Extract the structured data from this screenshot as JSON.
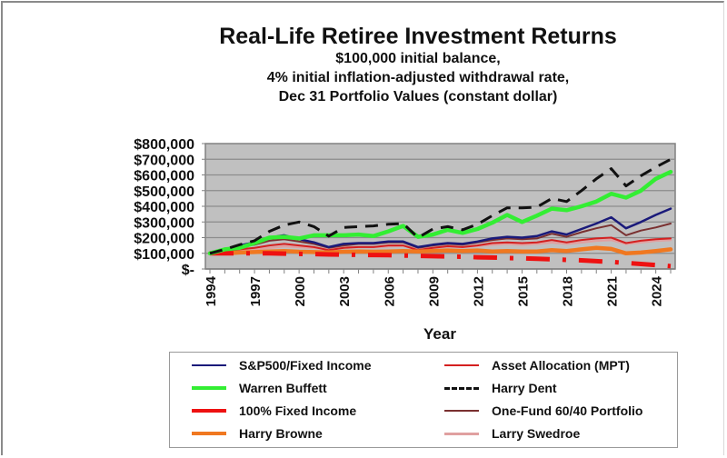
{
  "chart_data": {
    "type": "line",
    "title": "Real-Life Retiree Investment Returns",
    "subtitle": [
      "$100,000 initial balance,",
      "4% initial inflation-adjusted withdrawal rate,",
      "Dec 31 Portfolio Values (constant dollar)"
    ],
    "xlabel": "Year",
    "ylabel": "",
    "ylim": [
      0,
      800000
    ],
    "yticks": [
      "$800,000",
      "$700,000",
      "$600,000",
      "$500,000",
      "$400,000",
      "$300,000",
      "$200,000",
      "$100,000",
      "$-"
    ],
    "xticks": [
      "1994",
      "1997",
      "2000",
      "2003",
      "2006",
      "2009",
      "2012",
      "2015",
      "2018",
      "2021",
      "2024"
    ],
    "grid": true,
    "legend_position": "bottom",
    "x": [
      1994,
      1995,
      1996,
      1997,
      1998,
      1999,
      2000,
      2001,
      2002,
      2003,
      2004,
      2005,
      2006,
      2007,
      2008,
      2009,
      2010,
      2011,
      2012,
      2013,
      2014,
      2015,
      2016,
      2017,
      2018,
      2019,
      2020,
      2021,
      2022,
      2023,
      2024,
      2025
    ],
    "series": [
      {
        "name": "S&P500/Fixed Income",
        "color": "#1a1a7a",
        "width": 2.5,
        "dash": "",
        "values": [
          100000,
          120000,
          150000,
          170000,
          200000,
          215000,
          190000,
          170000,
          140000,
          160000,
          165000,
          165000,
          175000,
          175000,
          140000,
          155000,
          165000,
          160000,
          175000,
          195000,
          205000,
          200000,
          210000,
          240000,
          220000,
          255000,
          290000,
          330000,
          260000,
          300000,
          345000,
          385000
        ]
      },
      {
        "name": "Asset Allocation (MPT)",
        "color": "#d42020",
        "width": 2,
        "dash": "",
        "values": [
          100000,
          110000,
          125000,
          135000,
          150000,
          160000,
          150000,
          140000,
          120000,
          135000,
          140000,
          140000,
          150000,
          150000,
          120000,
          135000,
          145000,
          140000,
          150000,
          165000,
          170000,
          165000,
          170000,
          185000,
          170000,
          185000,
          195000,
          200000,
          165000,
          180000,
          190000,
          195000
        ]
      },
      {
        "name": "Warren Buffett",
        "color": "#33ee33",
        "width": 4.5,
        "dash": "",
        "values": [
          100000,
          125000,
          135000,
          165000,
          200000,
          205000,
          195000,
          215000,
          215000,
          215000,
          220000,
          210000,
          240000,
          275000,
          205000,
          220000,
          250000,
          230000,
          255000,
          295000,
          345000,
          300000,
          340000,
          385000,
          375000,
          400000,
          430000,
          480000,
          455000,
          500000,
          575000,
          620000
        ]
      },
      {
        "name": "Harry Dent",
        "color": "#111111",
        "width": 3,
        "dash": "14 9",
        "values": [
          100000,
          125000,
          155000,
          180000,
          240000,
          280000,
          300000,
          270000,
          210000,
          265000,
          270000,
          275000,
          285000,
          290000,
          200000,
          255000,
          270000,
          250000,
          285000,
          340000,
          390000,
          390000,
          395000,
          450000,
          430000,
          500000,
          575000,
          640000,
          530000,
          595000,
          650000,
          700000
        ]
      },
      {
        "name": "100% Fixed Income",
        "color": "#ee1111",
        "width": 5,
        "dash": "26 14 4 14",
        "values": [
          100000,
          100000,
          100000,
          100000,
          100000,
          98000,
          96000,
          95000,
          93000,
          92000,
          90000,
          89000,
          88000,
          86000,
          84000,
          82000,
          80000,
          78000,
          75000,
          73000,
          70000,
          68000,
          65000,
          62000,
          58000,
          55000,
          50000,
          45000,
          38000,
          32000,
          25000,
          18000
        ]
      },
      {
        "name": "One-Fund 60/40 Portfolio",
        "color": "#7a3030",
        "width": 2,
        "dash": "",
        "values": [
          100000,
          115000,
          140000,
          155000,
          180000,
          190000,
          175000,
          160000,
          135000,
          150000,
          160000,
          160000,
          170000,
          170000,
          135000,
          150000,
          160000,
          155000,
          170000,
          185000,
          195000,
          190000,
          195000,
          225000,
          205000,
          235000,
          260000,
          280000,
          215000,
          245000,
          265000,
          290000
        ]
      },
      {
        "name": "Harry Browne",
        "color": "#f07820",
        "width": 4.5,
        "dash": "",
        "values": [
          100000,
          100000,
          105000,
          108000,
          112000,
          115000,
          110000,
          108000,
          106000,
          110000,
          112000,
          110000,
          112000,
          115000,
          112000,
          115000,
          118000,
          115000,
          118000,
          112000,
          115000,
          112000,
          112000,
          120000,
          115000,
          125000,
          135000,
          128000,
          100000,
          105000,
          115000,
          125000
        ]
      },
      {
        "name": "Larry Swedroe",
        "color": "#e0a0a0",
        "width": 2.5,
        "dash": "",
        "values": [
          100000,
          108000,
          118000,
          125000,
          135000,
          145000,
          140000,
          135000,
          125000,
          135000,
          140000,
          140000,
          145000,
          148000,
          125000,
          135000,
          145000,
          140000,
          148000,
          155000,
          160000,
          155000,
          160000,
          170000,
          160000,
          170000,
          180000,
          185000,
          160000,
          170000,
          180000,
          185000
        ]
      }
    ]
  },
  "legend": {
    "items": [
      {
        "label": "S&P500/Fixed Income",
        "color": "#1a1a7a",
        "style": "solid",
        "thickness": 2
      },
      {
        "label": "Asset Allocation (MPT)",
        "color": "#d42020",
        "style": "solid",
        "thickness": 2
      },
      {
        "label": "Warren Buffett",
        "color": "#33ee33",
        "style": "solid",
        "thickness": 4
      },
      {
        "label": "Harry Dent",
        "color": "#111111",
        "style": "dashed",
        "thickness": 3
      },
      {
        "label": "100% Fixed Income",
        "color": "#ee1111",
        "style": "solid",
        "thickness": 4
      },
      {
        "label": "One-Fund 60/40 Portfolio",
        "color": "#7a3030",
        "style": "solid",
        "thickness": 2
      },
      {
        "label": "Harry Browne",
        "color": "#f07820",
        "style": "solid",
        "thickness": 4
      },
      {
        "label": "Larry Swedroe",
        "color": "#e0a0a0",
        "style": "solid",
        "thickness": 3
      }
    ]
  },
  "colors": {
    "plot_background": "#c0c0c0",
    "gridline": "#8c8c8c",
    "axis": "#808080"
  }
}
